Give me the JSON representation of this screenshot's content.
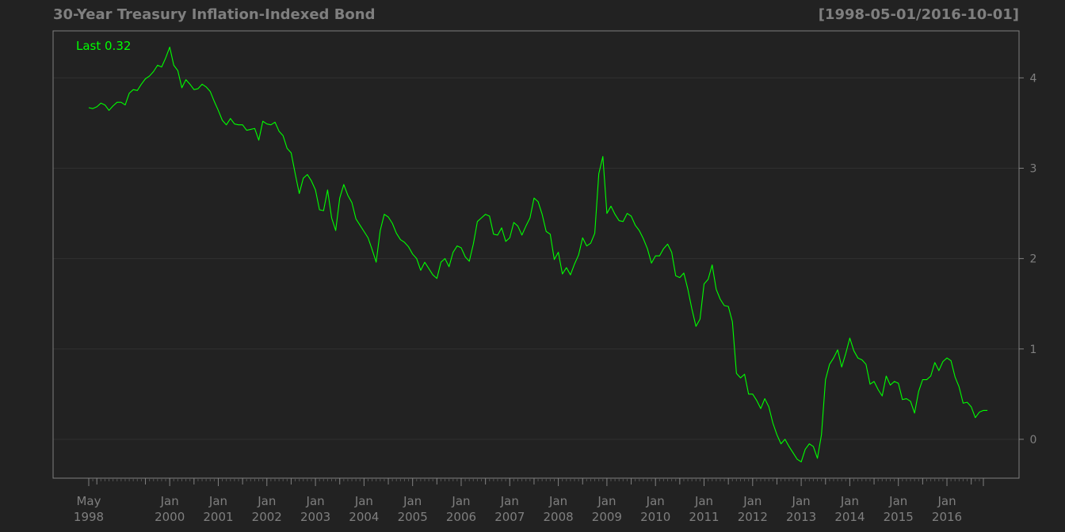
{
  "chart_data": {
    "type": "line",
    "title": "30-Year Treasury Inflation-Indexed Bond",
    "date_range_label": "[1998-05-01/2016-10-01]",
    "last_label": "Last 0.32",
    "x_start": "1998-05",
    "x_end": "2016-10",
    "frequency": "monthly",
    "ylim": [
      -0.43,
      4.52
    ],
    "yticks": [
      0,
      1,
      2,
      3,
      4
    ],
    "grid": true,
    "line_color": "#00ff00",
    "background_color": "#222222",
    "axis_color": "#7f7f7f",
    "grid_color": "#303030",
    "xticks": [
      {
        "date": "1998-05",
        "line1": "May",
        "line2": "1998"
      },
      {
        "date": "2000-01",
        "line1": "Jan",
        "line2": "2000"
      },
      {
        "date": "2001-01",
        "line1": "Jan",
        "line2": "2001"
      },
      {
        "date": "2002-01",
        "line1": "Jan",
        "line2": "2002"
      },
      {
        "date": "2003-01",
        "line1": "Jan",
        "line2": "2003"
      },
      {
        "date": "2004-01",
        "line1": "Jan",
        "line2": "2004"
      },
      {
        "date": "2005-01",
        "line1": "Jan",
        "line2": "2005"
      },
      {
        "date": "2006-01",
        "line1": "Jan",
        "line2": "2006"
      },
      {
        "date": "2007-01",
        "line1": "Jan",
        "line2": "2007"
      },
      {
        "date": "2008-01",
        "line1": "Jan",
        "line2": "2008"
      },
      {
        "date": "2009-01",
        "line1": "Jan",
        "line2": "2009"
      },
      {
        "date": "2010-01",
        "line1": "Jan",
        "line2": "2010"
      },
      {
        "date": "2011-01",
        "line1": "Jan",
        "line2": "2011"
      },
      {
        "date": "2012-01",
        "line1": "Jan",
        "line2": "2012"
      },
      {
        "date": "2013-01",
        "line1": "Jan",
        "line2": "2013"
      },
      {
        "date": "2014-01",
        "line1": "Jan",
        "line2": "2014"
      },
      {
        "date": "2015-01",
        "line1": "Jan",
        "line2": "2015"
      },
      {
        "date": "2016-01",
        "line1": "Jan",
        "line2": "2016"
      }
    ],
    "series": [
      {
        "values": [
          3.67,
          3.66,
          3.68,
          3.72,
          3.7,
          3.64,
          3.69,
          3.73,
          3.73,
          3.7,
          3.83,
          3.87,
          3.86,
          3.93,
          3.99,
          4.02,
          4.07,
          4.14,
          4.12,
          4.22,
          4.34,
          4.14,
          4.08,
          3.89,
          3.98,
          3.93,
          3.87,
          3.88,
          3.93,
          3.9,
          3.85,
          3.74,
          3.64,
          3.53,
          3.48,
          3.55,
          3.49,
          3.48,
          3.48,
          3.42,
          3.43,
          3.44,
          3.31,
          3.52,
          3.49,
          3.48,
          3.51,
          3.41,
          3.36,
          3.22,
          3.17,
          2.94,
          2.72,
          2.89,
          2.93,
          2.86,
          2.76,
          2.54,
          2.53,
          2.76,
          2.45,
          2.31,
          2.67,
          2.82,
          2.7,
          2.62,
          2.44,
          2.37,
          2.3,
          2.23,
          2.1,
          1.96,
          2.31,
          2.49,
          2.46,
          2.39,
          2.28,
          2.21,
          2.18,
          2.13,
          2.05,
          2.0,
          1.87,
          1.96,
          1.89,
          1.82,
          1.78,
          1.96,
          2.0,
          1.91,
          2.07,
          2.14,
          2.12,
          2.02,
          1.97,
          2.16,
          2.41,
          2.45,
          2.49,
          2.47,
          2.27,
          2.26,
          2.34,
          2.19,
          2.23,
          2.4,
          2.36,
          2.26,
          2.36,
          2.45,
          2.67,
          2.63,
          2.49,
          2.3,
          2.27,
          1.99,
          2.07,
          1.83,
          1.9,
          1.82,
          1.94,
          2.04,
          2.23,
          2.14,
          2.17,
          2.28,
          2.94,
          3.13,
          2.5,
          2.58,
          2.49,
          2.42,
          2.41,
          2.5,
          2.47,
          2.37,
          2.31,
          2.22,
          2.11,
          1.95,
          2.03,
          2.03,
          2.11,
          2.16,
          2.07,
          1.81,
          1.79,
          1.84,
          1.66,
          1.44,
          1.25,
          1.33,
          1.72,
          1.77,
          1.93,
          1.66,
          1.55,
          1.48,
          1.47,
          1.3,
          0.73,
          0.68,
          0.72,
          0.5,
          0.5,
          0.43,
          0.34,
          0.45,
          0.36,
          0.18,
          0.05,
          -0.05,
          0.0,
          -0.08,
          -0.15,
          -0.22,
          -0.25,
          -0.11,
          -0.05,
          -0.08,
          -0.21,
          0.05,
          0.66,
          0.83,
          0.9,
          0.99,
          0.8,
          0.95,
          1.12,
          0.98,
          0.9,
          0.88,
          0.83,
          0.61,
          0.64,
          0.55,
          0.48,
          0.7,
          0.6,
          0.64,
          0.62,
          0.44,
          0.45,
          0.42,
          0.29,
          0.53,
          0.66,
          0.66,
          0.7,
          0.85,
          0.76,
          0.86,
          0.9,
          0.87,
          0.69,
          0.58,
          0.4,
          0.41,
          0.36,
          0.24,
          0.3,
          0.32,
          0.32
        ]
      }
    ]
  }
}
